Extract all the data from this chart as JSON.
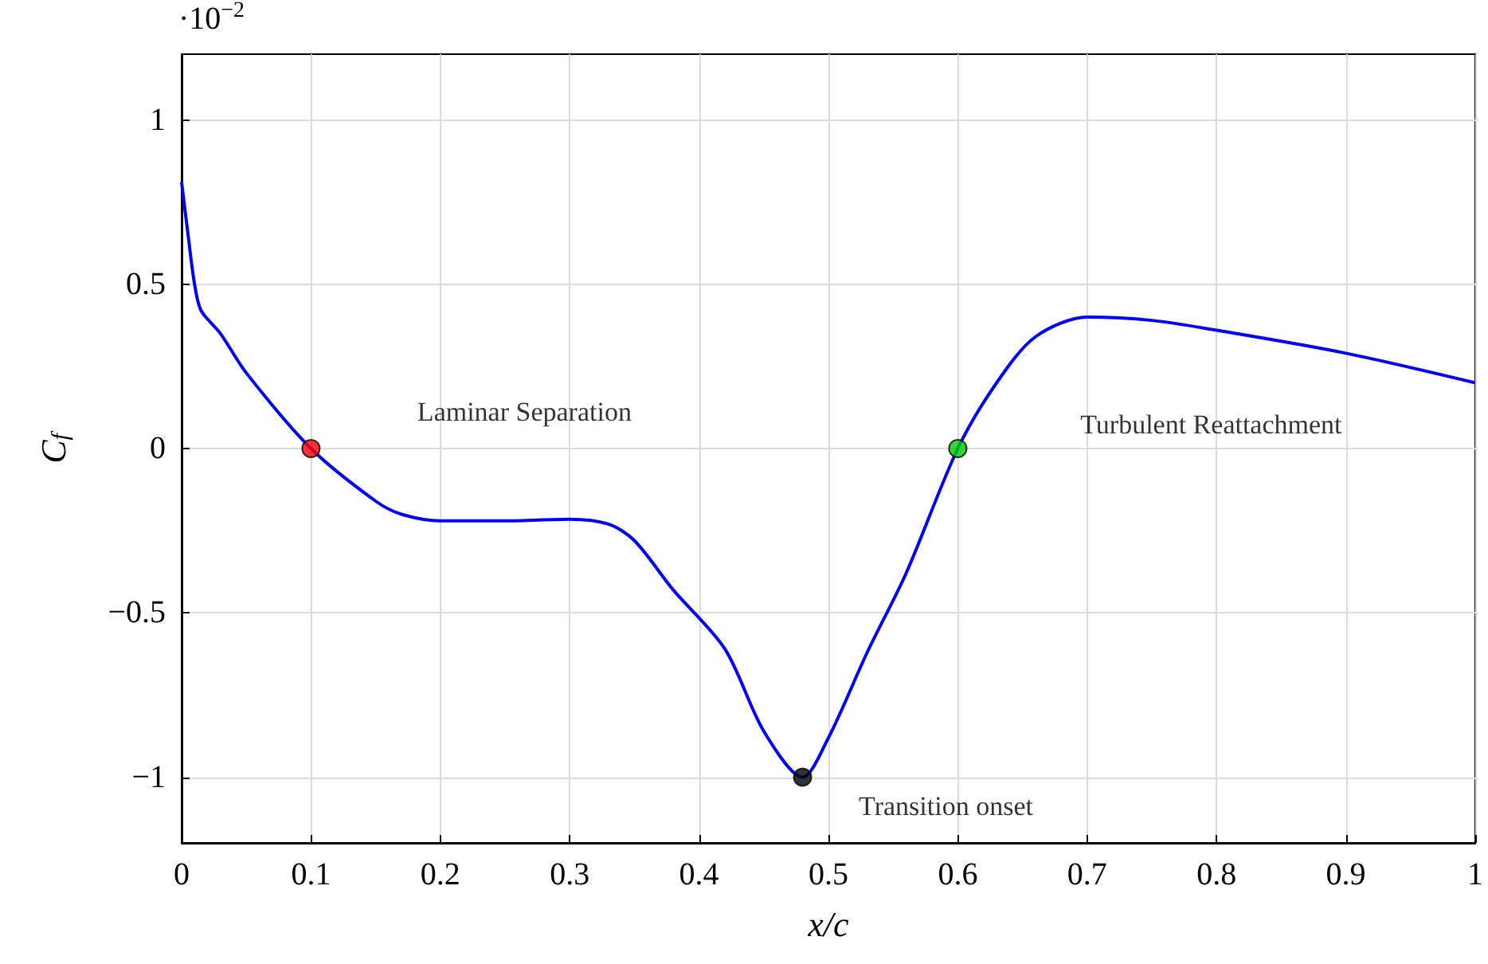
{
  "chart_data": {
    "type": "line",
    "xlabel": "x/c",
    "ylabel": "C$_{f}$",
    "annotations": [
      "Laminar Separation",
      "Transition onset",
      "Turbulent Reattachment",
      "·10$^{−2}$"
    ],
    "series": [
      {
        "color": "#0000ff",
        "marker": "none",
        "x": [
          0,
          0.005,
          0.01,
          0.015,
          0.03,
          0.05,
          0.1,
          0.15,
          0.17,
          0.2,
          0.25,
          0.3,
          0.33,
          0.35,
          0.38,
          0.42,
          0.45,
          0.48,
          0.5,
          0.53,
          0.56,
          0.6,
          0.63,
          0.66,
          0.7,
          0.75,
          0.8,
          0.9,
          1
        ],
        "values": [
          0.81,
          0.65,
          0.5,
          0.42,
          0.35,
          0.23,
          0,
          -0.16,
          -0.2,
          -0.22,
          -0.22,
          -0.215,
          -0.23,
          -0.28,
          -0.43,
          -0.61,
          -0.86,
          -1,
          -0.88,
          -0.62,
          -0.38,
          0,
          0.2,
          0.34,
          0.4,
          0.39,
          0.36,
          0.29,
          0.2
        ]
      },
      {
        "type": "scatter",
        "marker": "circle",
        "x": [
          0.1,
          0.48,
          0.6
        ],
        "values": [
          0,
          -1,
          0
        ],
        "colors": [
          "#ff0000",
          "#000000",
          "#00cc00"
        ]
      }
    ],
    "xlim": [
      0,
      1
    ],
    "xticks": [
      0,
      0.1,
      0.2,
      0.3,
      0.4,
      0.5,
      0.6,
      0.7,
      0.8,
      0.9,
      1
    ],
    "ylim": [
      -1.2,
      1.2
    ],
    "yticks": [
      {
        "value": -1,
        "label": "−1"
      },
      {
        "value": -0.5,
        "label": "−0.5"
      },
      0,
      0.5,
      1
    ],
    "grid": true
  }
}
